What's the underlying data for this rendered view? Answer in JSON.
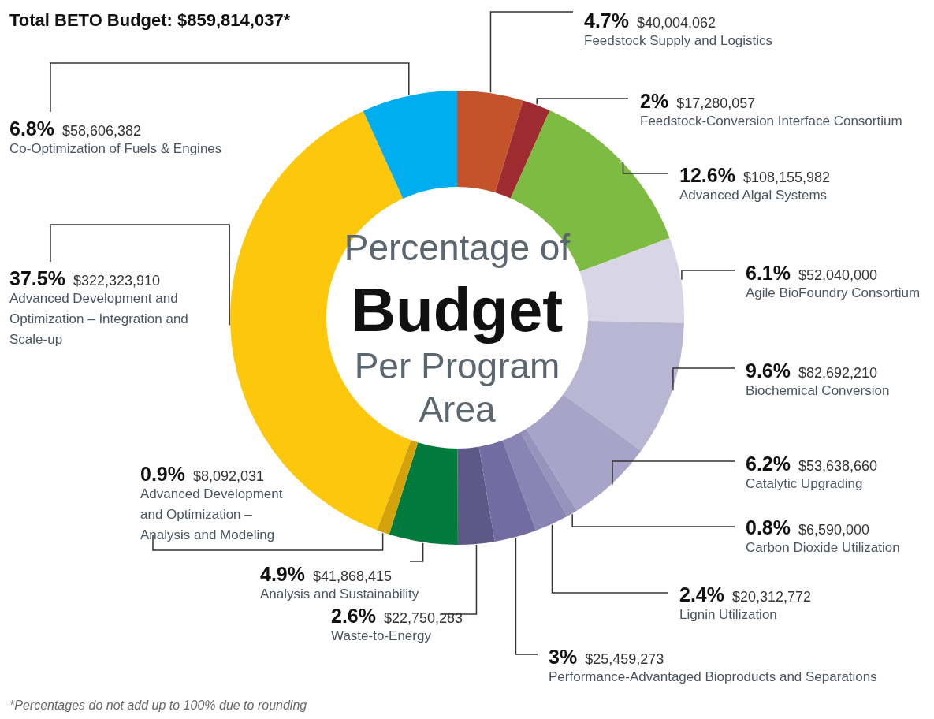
{
  "chart_data": {
    "type": "donut",
    "title": "Total BETO Budget: $859,814,037*",
    "subtitle": "Percentage of\nBudget\nPer Program\nArea",
    "categories": [
      "Feedstock Supply and Logistics",
      "Feedstock-Conversion Interface Consortium",
      "Advanced Algal Systems",
      "Agile BioFoundry Consortium",
      "Biochemical Conversion",
      "Catalytic Upgrading",
      "Carbon Dioxide Utilization",
      "Lignin Utilization",
      "Performance-Advantaged Bioproducts and Separations",
      "Waste-to-Energy",
      "Analysis and Sustainability",
      "Advanced Development and Optimization – Analysis and Modeling",
      "Advanced Development and Optimization – Integration and Scale-up",
      "Co-Optimization of Fuels & Engines"
    ],
    "values": [
      4.7,
      2,
      12.6,
      6.1,
      9.6,
      6.2,
      0.8,
      2.4,
      3,
      2.6,
      4.9,
      0.9,
      37.5,
      6.8
    ],
    "value_labels": [
      "4.7% $40,004,062",
      "2% $17,280,057",
      "12.6% $108,155,982",
      "6.1% $52,040,000",
      "9.6% $82,692,210",
      "6.2% $53,638,660",
      "0.8% $6,590,000",
      "2.4% $20,312,772",
      "3% $25,459,273",
      "2.6% $22,750,283",
      "4.9% $41,868,415",
      "0.9% $8,092,031",
      "37.5% $322,323,910",
      "6.8% $58,606,382"
    ],
    "colors": [
      "#c4522a",
      "#9e2b2f",
      "#7dbb42",
      "#d8d6e6",
      "#b9b6d3",
      "#a7a3c9",
      "#9893bd",
      "#8a84b5",
      "#736ca3",
      "#5e5887",
      "#007a3d",
      "#d4a20a",
      "#fdc70c",
      "#00adee"
    ],
    "annotations": [
      "*Percentages do not add up to 100% due to rounding"
    ]
  }
}
